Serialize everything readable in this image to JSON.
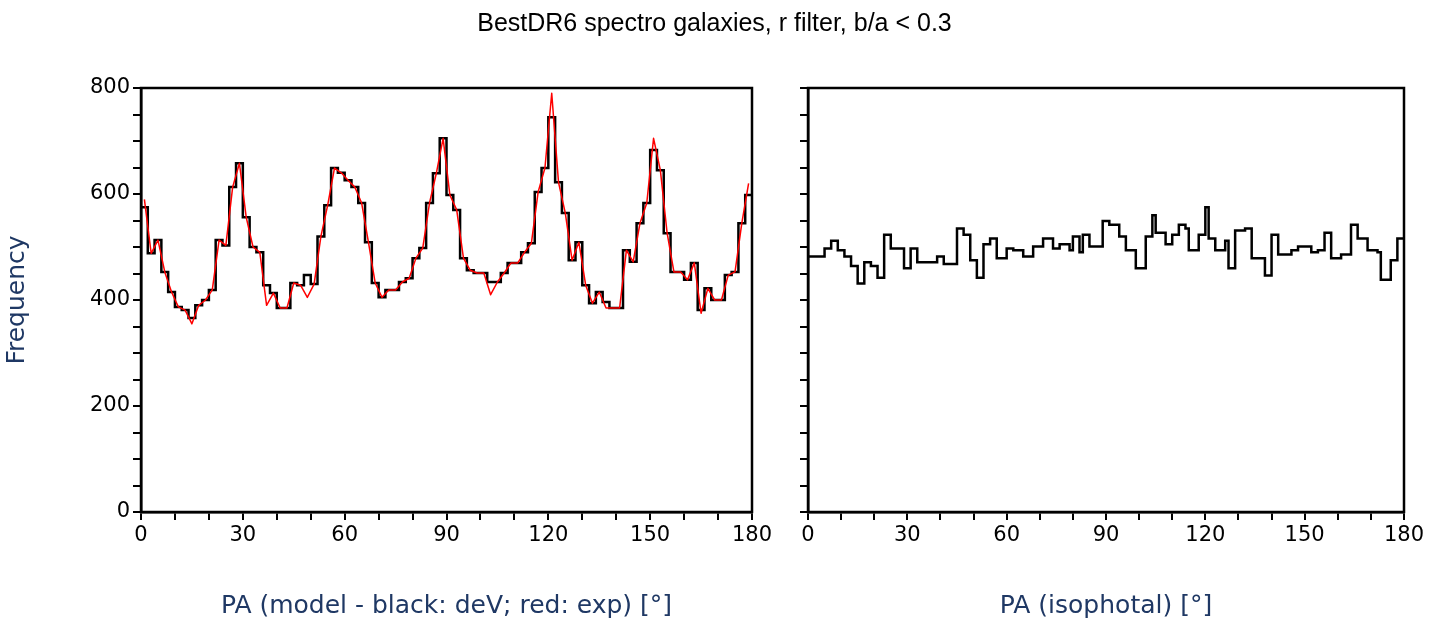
{
  "chart_data": [
    {
      "type": "histogram",
      "title": "BestDR6 spectro galaxies, r filter, b/a < 0.3",
      "xlabel": "PA (model - black: deV; red: exp) [°]",
      "ylabel": "Frequency",
      "bins": [
        0,
        2,
        4,
        6,
        8,
        10,
        12,
        14,
        16,
        18,
        20,
        22,
        24,
        26,
        28,
        30,
        32,
        34,
        36,
        38,
        40,
        42,
        44,
        46,
        48,
        50,
        52,
        54,
        56,
        58,
        60,
        62,
        64,
        66,
        68,
        70,
        72,
        74,
        76,
        78,
        80,
        82,
        84,
        86,
        88,
        90,
        92,
        94,
        96,
        98,
        100,
        102,
        104,
        106,
        108,
        110,
        112,
        114,
        116,
        118,
        120,
        122,
        124,
        126,
        128,
        130,
        132,
        134,
        136,
        138,
        140,
        142,
        144,
        146,
        148,
        150,
        152,
        154,
        156,
        158,
        160,
        162,
        164,
        166,
        168,
        170,
        172,
        174,
        176,
        178,
        180
      ],
      "series": [
        {
          "color": "#000000",
          "values": [
            575,
            488,
            513,
            453,
            415,
            387,
            381,
            366,
            390,
            400,
            419,
            513,
            503,
            613,
            658,
            556,
            500,
            490,
            428,
            413,
            385,
            385,
            432,
            428,
            447,
            430,
            520,
            579,
            649,
            640,
            626,
            613,
            583,
            509,
            432,
            405,
            419,
            419,
            434,
            441,
            479,
            498,
            583,
            639,
            705,
            598,
            570,
            479,
            456,
            451,
            451,
            434,
            434,
            451,
            470,
            470,
            490,
            507,
            604,
            649,
            745,
            622,
            564,
            475,
            509,
            428,
            394,
            415,
            396,
            385,
            385,
            494,
            472,
            545,
            583,
            683,
            645,
            526,
            453,
            453,
            438,
            470,
            381,
            422,
            400,
            400,
            447,
            453,
            545,
            598
          ]
        },
        {
          "type": "line",
          "color": "#ff0000",
          "x": [
            1,
            3,
            5,
            7,
            9,
            11,
            13,
            15,
            17,
            19,
            21,
            23,
            25,
            27,
            29,
            31,
            33,
            35,
            37,
            39,
            41,
            43,
            45,
            47,
            49,
            51,
            53,
            55,
            57,
            59,
            61,
            63,
            65,
            67,
            69,
            71,
            73,
            75,
            77,
            79,
            81,
            83,
            85,
            87,
            89,
            91,
            93,
            95,
            97,
            99,
            101,
            103,
            105,
            107,
            109,
            111,
            113,
            115,
            117,
            119,
            121,
            123,
            125,
            127,
            129,
            131,
            133,
            135,
            137,
            139,
            141,
            143,
            145,
            147,
            149,
            151,
            153,
            155,
            157,
            159,
            161,
            163,
            165,
            167,
            169,
            171,
            173,
            175,
            177,
            179
          ],
          "values": [
            590,
            488,
            513,
            453,
            415,
            387,
            381,
            355,
            390,
            400,
            419,
            513,
            503,
            613,
            658,
            556,
            500,
            490,
            390,
            413,
            385,
            385,
            432,
            428,
            405,
            430,
            520,
            579,
            649,
            640,
            626,
            613,
            583,
            509,
            432,
            405,
            419,
            419,
            434,
            441,
            479,
            498,
            583,
            639,
            705,
            598,
            570,
            479,
            456,
            451,
            451,
            410,
            434,
            451,
            470,
            470,
            490,
            507,
            604,
            649,
            790,
            622,
            564,
            475,
            509,
            428,
            394,
            415,
            385,
            385,
            385,
            494,
            472,
            545,
            583,
            705,
            645,
            526,
            453,
            453,
            438,
            470,
            375,
            422,
            400,
            400,
            447,
            453,
            545,
            620
          ]
        }
      ],
      "xlim": [
        0,
        180
      ],
      "xticks": [
        0,
        {
          "value": 10,
          "label": null
        },
        {
          "value": 20,
          "label": null
        },
        30,
        {
          "value": 40,
          "label": null
        },
        {
          "value": 50,
          "label": null
        },
        60,
        {
          "value": 70,
          "label": null
        },
        {
          "value": 80,
          "label": null
        },
        90,
        {
          "value": 100,
          "label": null
        },
        {
          "value": 110,
          "label": null
        },
        120,
        {
          "value": 130,
          "label": null
        },
        {
          "value": 140,
          "label": null
        },
        150,
        {
          "value": 160,
          "label": null
        },
        {
          "value": 170,
          "label": null
        },
        180
      ],
      "ylim": [
        0,
        800
      ],
      "yticks": [
        0,
        {
          "value": 50,
          "label": null
        },
        {
          "value": 100,
          "label": null
        },
        {
          "value": 150,
          "label": null
        },
        200,
        {
          "value": 250,
          "label": null
        },
        {
          "value": 300,
          "label": null
        },
        {
          "value": 350,
          "label": null
        },
        400,
        {
          "value": 450,
          "label": null
        },
        {
          "value": 500,
          "label": null
        },
        {
          "value": 550,
          "label": null
        },
        600,
        {
          "value": 650,
          "label": null
        },
        {
          "value": 700,
          "label": null
        },
        {
          "value": 750,
          "label": null
        },
        800
      ]
    },
    {
      "type": "histogram",
      "xlabel": "PA (isophotal) [°]",
      "bins": [
        0,
        5,
        7,
        9,
        11,
        13,
        15,
        17,
        19,
        21,
        23,
        25,
        29,
        31,
        33,
        39,
        41,
        45,
        47,
        49,
        51,
        53,
        55,
        57,
        60,
        62,
        65,
        68,
        71,
        74,
        76,
        79,
        80,
        82,
        83,
        85,
        89,
        91,
        94,
        96,
        99,
        102,
        104,
        105,
        108,
        110,
        112,
        114,
        115,
        118,
        120,
        121,
        123,
        126,
        127,
        129,
        132,
        134,
        138,
        140,
        142,
        146,
        148,
        152,
        154,
        156,
        158,
        161,
        164,
        166,
        169,
        172,
        173,
        176,
        178,
        180
      ],
      "values": [
        482,
        497,
        512,
        494,
        482,
        464,
        431,
        471,
        464,
        442,
        523,
        497,
        460,
        497,
        471,
        482,
        468,
        535,
        523,
        475,
        442,
        505,
        516,
        479,
        497,
        494,
        482,
        501,
        516,
        497,
        505,
        494,
        520,
        490,
        523,
        501,
        549,
        542,
        520,
        494,
        460,
        520,
        560,
        527,
        505,
        523,
        542,
        535,
        494,
        523,
        575,
        516,
        494,
        512,
        460,
        531,
        535,
        479,
        446,
        523,
        486,
        494,
        501,
        490,
        494,
        527,
        479,
        486,
        542,
        516,
        494,
        490,
        438,
        475,
        516
      ],
      "color": "#000000",
      "xlim": [
        0,
        180
      ],
      "xticks": [
        0,
        {
          "value": 10,
          "label": null
        },
        {
          "value": 20,
          "label": null
        },
        30,
        {
          "value": 40,
          "label": null
        },
        {
          "value": 50,
          "label": null
        },
        60,
        {
          "value": 70,
          "label": null
        },
        {
          "value": 80,
          "label": null
        },
        90,
        {
          "value": 100,
          "label": null
        },
        {
          "value": 110,
          "label": null
        },
        120,
        {
          "value": 130,
          "label": null
        },
        {
          "value": 140,
          "label": null
        },
        150,
        {
          "value": 160,
          "label": null
        },
        {
          "value": 170,
          "label": null
        },
        180
      ],
      "ylim": [
        0,
        800
      ],
      "yticks": [
        0,
        {
          "value": 50,
          "label": null
        },
        {
          "value": 100,
          "label": null
        },
        {
          "value": 150,
          "label": null
        },
        200,
        {
          "value": 250,
          "label": null
        },
        {
          "value": 300,
          "label": null
        },
        {
          "value": 350,
          "label": null
        },
        400,
        {
          "value": 450,
          "label": null
        },
        {
          "value": 500,
          "label": null
        },
        {
          "value": 550,
          "label": null
        },
        600,
        {
          "value": 650,
          "label": null
        },
        {
          "value": 700,
          "label": null
        },
        {
          "value": 750,
          "label": null
        },
        800
      ],
      "tick_labels": "x"
    }
  ]
}
